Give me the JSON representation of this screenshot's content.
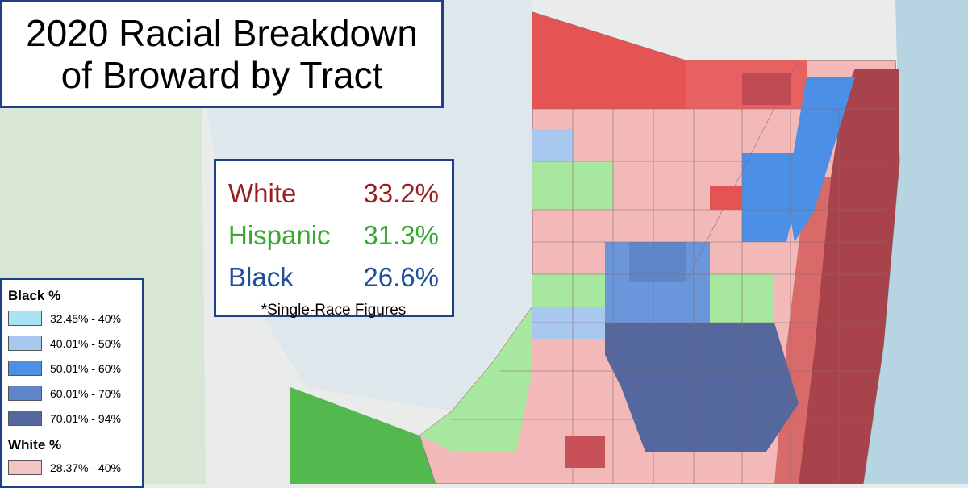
{
  "title": {
    "line1": "2020 Racial Breakdown",
    "line2": "of Broward by Tract"
  },
  "stats": {
    "items": [
      {
        "label": "White",
        "value": "33.2%",
        "color": "#9b1c1c"
      },
      {
        "label": "Hispanic",
        "value": "31.3%",
        "color": "#38a832"
      },
      {
        "label": "Black",
        "value": "26.6%",
        "color": "#1f4f9c"
      }
    ],
    "note": "*Single-Race Figures"
  },
  "legend": {
    "black": {
      "heading": "Black  %",
      "items": [
        {
          "label": "32.45% - 40%",
          "color": "#a9e3f4"
        },
        {
          "label": "40.01% - 50%",
          "color": "#a8c8f0"
        },
        {
          "label": "50.01% - 60%",
          "color": "#4b8fe6"
        },
        {
          "label": "60.01% - 70%",
          "color": "#5f87c8"
        },
        {
          "label": "70.01% - 94%",
          "color": "#54689e"
        }
      ]
    },
    "white": {
      "heading": "White  %",
      "items": [
        {
          "label": "28.37% - 40%",
          "color": "#f7c4c4"
        }
      ]
    }
  },
  "map_colors": {
    "land": "#e9ecea",
    "water": "#dbe8ee",
    "ocean": "#b6d4e2",
    "park": "#d7e7d3",
    "white_light": "#f6c4c4",
    "white_mid": "#ee8f8f",
    "white_high": "#e55454",
    "white_very_high": "#a8434b",
    "hispanic_light": "#a7e7a0",
    "hispanic_high": "#53b84d",
    "black_light": "#a8c8f0",
    "black_mid": "#4b8fe6",
    "black_high": "#54689e"
  }
}
